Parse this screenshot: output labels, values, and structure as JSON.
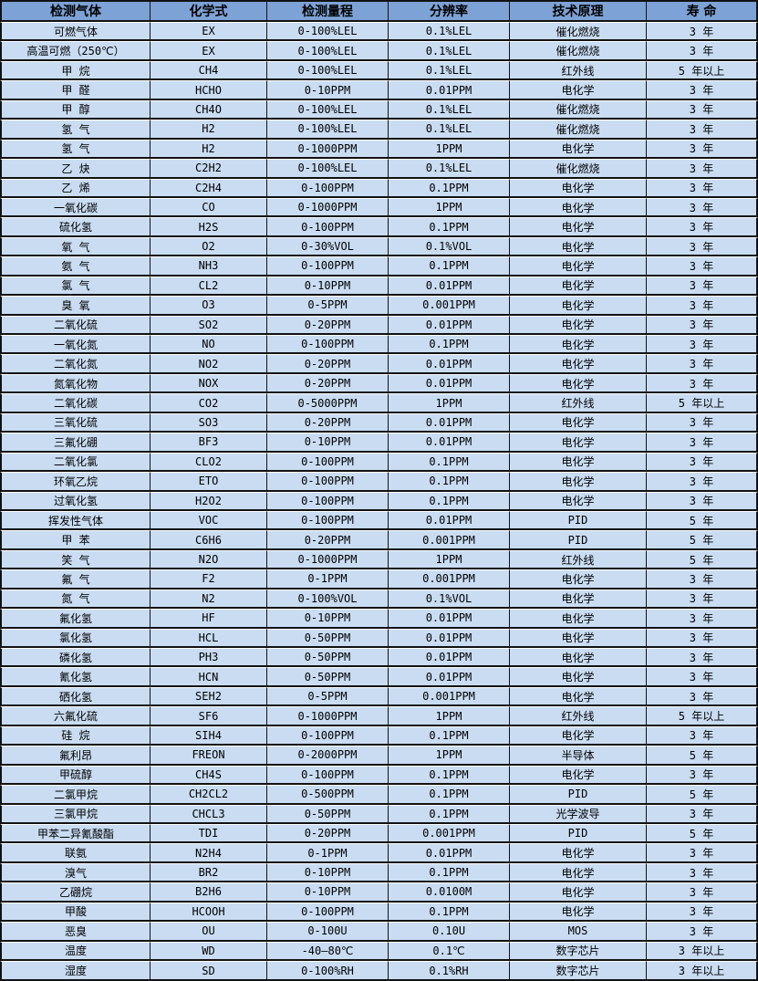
{
  "colors": {
    "header_bg": "#7DA2D5",
    "row_bg": "#C9DCF2",
    "border": "#121212",
    "highlight": "#FDFDFD",
    "text": "#000000"
  },
  "table": {
    "columns": [
      {
        "key": "gas",
        "label": "检测气体"
      },
      {
        "key": "formula",
        "label": "化学式"
      },
      {
        "key": "range",
        "label": "检测量程"
      },
      {
        "key": "resolution",
        "label": "分辨率"
      },
      {
        "key": "principle",
        "label": "技术原理"
      },
      {
        "key": "lifespan",
        "label": "寿 命"
      }
    ],
    "rows": [
      [
        "可燃气体",
        "EX",
        "0-100%LEL",
        "0.1%LEL",
        "催化燃烧",
        "3 年"
      ],
      [
        "高温可燃（250℃）",
        "EX",
        "0-100%LEL",
        "0.1%LEL",
        "催化燃烧",
        "3 年"
      ],
      [
        "甲 烷",
        "CH4",
        "0-100%LEL",
        "0.1%LEL",
        "红外线",
        "5 年以上"
      ],
      [
        "甲 醛",
        "HCHO",
        "0-10PPM",
        "0.01PPM",
        "电化学",
        "3 年"
      ],
      [
        "甲 醇",
        "CH4O",
        "0-100%LEL",
        "0.1%LEL",
        "催化燃烧",
        "3 年"
      ],
      [
        "氢 气",
        "H2",
        "0-100%LEL",
        "0.1%LEL",
        "催化燃烧",
        "3 年"
      ],
      [
        "氢 气",
        "H2",
        "0-1000PPM",
        "1PPM",
        "电化学",
        "3 年"
      ],
      [
        "乙 炔",
        "C2H2",
        "0-100%LEL",
        "0.1%LEL",
        "催化燃烧",
        "3 年"
      ],
      [
        "乙 烯",
        "C2H4",
        "0-100PPM",
        "0.1PPM",
        "电化学",
        "3 年"
      ],
      [
        "一氧化碳",
        "CO",
        "0-1000PPM",
        "1PPM",
        "电化学",
        "3 年"
      ],
      [
        "硫化氢",
        "H2S",
        "0-100PPM",
        "0.1PPM",
        "电化学",
        "3 年"
      ],
      [
        "氧 气",
        "O2",
        "0-30%VOL",
        "0.1%VOL",
        "电化学",
        "3 年"
      ],
      [
        "氨 气",
        "NH3",
        "0-100PPM",
        "0.1PPM",
        "电化学",
        "3 年"
      ],
      [
        "氯 气",
        "CL2",
        "0-10PPM",
        "0.01PPM",
        "电化学",
        "3 年"
      ],
      [
        "臭 氧",
        "O3",
        "0-5PPM",
        "0.001PPM",
        "电化学",
        "3 年"
      ],
      [
        "二氧化硫",
        "SO2",
        "0-20PPM",
        "0.01PPM",
        "电化学",
        "3 年"
      ],
      [
        "一氧化氮",
        "NO",
        "0-100PPM",
        "0.1PPM",
        "电化学",
        "3 年"
      ],
      [
        "二氧化氮",
        "NO2",
        "0-20PPM",
        "0.01PPM",
        "电化学",
        "3 年"
      ],
      [
        "氮氧化物",
        "NOX",
        "0-20PPM",
        "0.01PPM",
        "电化学",
        "3 年"
      ],
      [
        "二氧化碳",
        "CO2",
        "0-5000PPM",
        "1PPM",
        "红外线",
        "5 年以上"
      ],
      [
        "三氧化硫",
        "SO3",
        "0-20PPM",
        "0.01PPM",
        "电化学",
        "3 年"
      ],
      [
        "三氟化硼",
        "BF3",
        "0-10PPM",
        "0.01PPM",
        "电化学",
        "3 年"
      ],
      [
        "二氧化氯",
        "CLO2",
        "0-100PPM",
        "0.1PPM",
        "电化学",
        "3 年"
      ],
      [
        "环氧乙烷",
        "ETO",
        "0-100PPM",
        "0.1PPM",
        "电化学",
        "3 年"
      ],
      [
        "过氧化氢",
        "H2O2",
        "0-100PPM",
        "0.1PPM",
        "电化学",
        "3 年"
      ],
      [
        "挥发性气体",
        "VOC",
        "0-100PPM",
        "0.01PPM",
        "PID",
        "5 年"
      ],
      [
        "甲 苯",
        "C6H6",
        "0-20PPM",
        "0.001PPM",
        "PID",
        "5 年"
      ],
      [
        "笑 气",
        "N2O",
        "0-1000PPM",
        "1PPM",
        "红外线",
        "5 年"
      ],
      [
        "氟 气",
        "F2",
        "0-1PPM",
        "0.001PPM",
        "电化学",
        "3 年"
      ],
      [
        "氮 气",
        "N2",
        "0-100%VOL",
        "0.1%VOL",
        "电化学",
        "3 年"
      ],
      [
        "氟化氢",
        "HF",
        "0-10PPM",
        "0.01PPM",
        "电化学",
        "3 年"
      ],
      [
        "氯化氢",
        "HCL",
        "0-50PPM",
        "0.01PPM",
        "电化学",
        "3 年"
      ],
      [
        "磷化氢",
        "PH3",
        "0-50PPM",
        "0.01PPM",
        "电化学",
        "3 年"
      ],
      [
        "氰化氢",
        "HCN",
        "0-50PPM",
        "0.01PPM",
        "电化学",
        "3 年"
      ],
      [
        "硒化氢",
        "SEH2",
        "0-5PPM",
        "0.001PPM",
        "电化学",
        "3 年"
      ],
      [
        "六氟化硫",
        "SF6",
        "0-1000PPM",
        "1PPM",
        "红外线",
        "5 年以上"
      ],
      [
        "硅 烷",
        "SIH4",
        "0-100PPM",
        "0.1PPM",
        "电化学",
        "3 年"
      ],
      [
        "氟利昂",
        "FREON",
        "0-2000PPM",
        "1PPM",
        "半导体",
        "5 年"
      ],
      [
        "甲硫醇",
        "CH4S",
        "0-100PPM",
        "0.1PPM",
        "电化学",
        "3 年"
      ],
      [
        "二氯甲烷",
        "CH2CL2",
        "0-500PPM",
        "0.1PPM",
        "PID",
        "5 年"
      ],
      [
        "三氯甲烷",
        "CHCL3",
        "0-50PPM",
        "0.1PPM",
        "光学波导",
        "3 年"
      ],
      [
        "甲苯二异氰酸酯",
        "TDI",
        "0-20PPM",
        "0.001PPM",
        "PID",
        "5 年"
      ],
      [
        "联氨",
        "N2H4",
        "0-1PPM",
        "0.01PPM",
        "电化学",
        "3 年"
      ],
      [
        "溴气",
        "BR2",
        "0-10PPM",
        "0.1PPM",
        "电化学",
        "3 年"
      ],
      [
        "乙硼烷",
        "B2H6",
        "0-10PPM",
        "0.0100M",
        "电化学",
        "3 年"
      ],
      [
        "甲酸",
        "HCOOH",
        "0-100PPM",
        "0.1PPM",
        "电化学",
        "3 年"
      ],
      [
        "恶臭",
        "OU",
        "0-100U",
        "0.10U",
        "MOS",
        "3 年"
      ],
      [
        "温度",
        "WD",
        "-40—80℃",
        "0.1℃",
        "数字芯片",
        "3 年以上"
      ],
      [
        "湿度",
        "SD",
        "0-100%RH",
        "0.1%RH",
        "数字芯片",
        "3 年以上"
      ]
    ]
  }
}
